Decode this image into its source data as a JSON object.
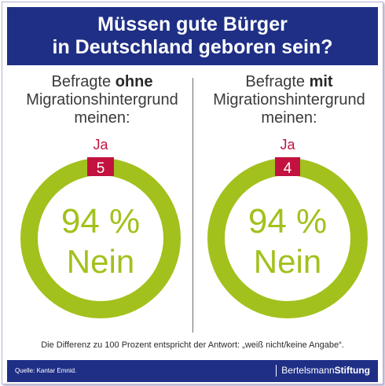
{
  "header": {
    "title_line1": "Müssen gute Bürger",
    "title_line2": "in Deutschland geboren sein?"
  },
  "colors": {
    "header_bg": "#1f2f86",
    "ring_green": "#a2c11d",
    "ja_red": "#c2123f"
  },
  "panels": [
    {
      "heading_prefix": "Befragte",
      "heading_bold": "ohne",
      "heading_line2": "Migrationshintergrund",
      "heading_line3": "meinen:",
      "ja_label": "Ja",
      "ja_value_text": "5",
      "nein_percent_text": "94 %",
      "nein_label": "Nein"
    },
    {
      "heading_prefix": "Befragte",
      "heading_bold": "mit",
      "heading_line2": "Migrationshintergrund",
      "heading_line3": "meinen:",
      "ja_label": "Ja",
      "ja_value_text": "4",
      "nein_percent_text": "94 %",
      "nein_label": "Nein"
    }
  ],
  "chart_data": [
    {
      "type": "pie",
      "style": "donut",
      "categories": [
        "Ja",
        "Nein"
      ],
      "values": [
        5,
        94
      ],
      "unit": "%"
    },
    {
      "type": "pie",
      "style": "donut",
      "categories": [
        "Ja",
        "Nein"
      ],
      "values": [
        4,
        94
      ],
      "unit": "%"
    }
  ],
  "note": "Die Differenz zu 100 Prozent entspricht der Antwort: „weiß nicht/keine Angabe“.",
  "footer": {
    "source": "Quelle: Kantar Emnid.",
    "brand_regular": "Bertelsmann",
    "brand_bold": "Stiftung"
  }
}
